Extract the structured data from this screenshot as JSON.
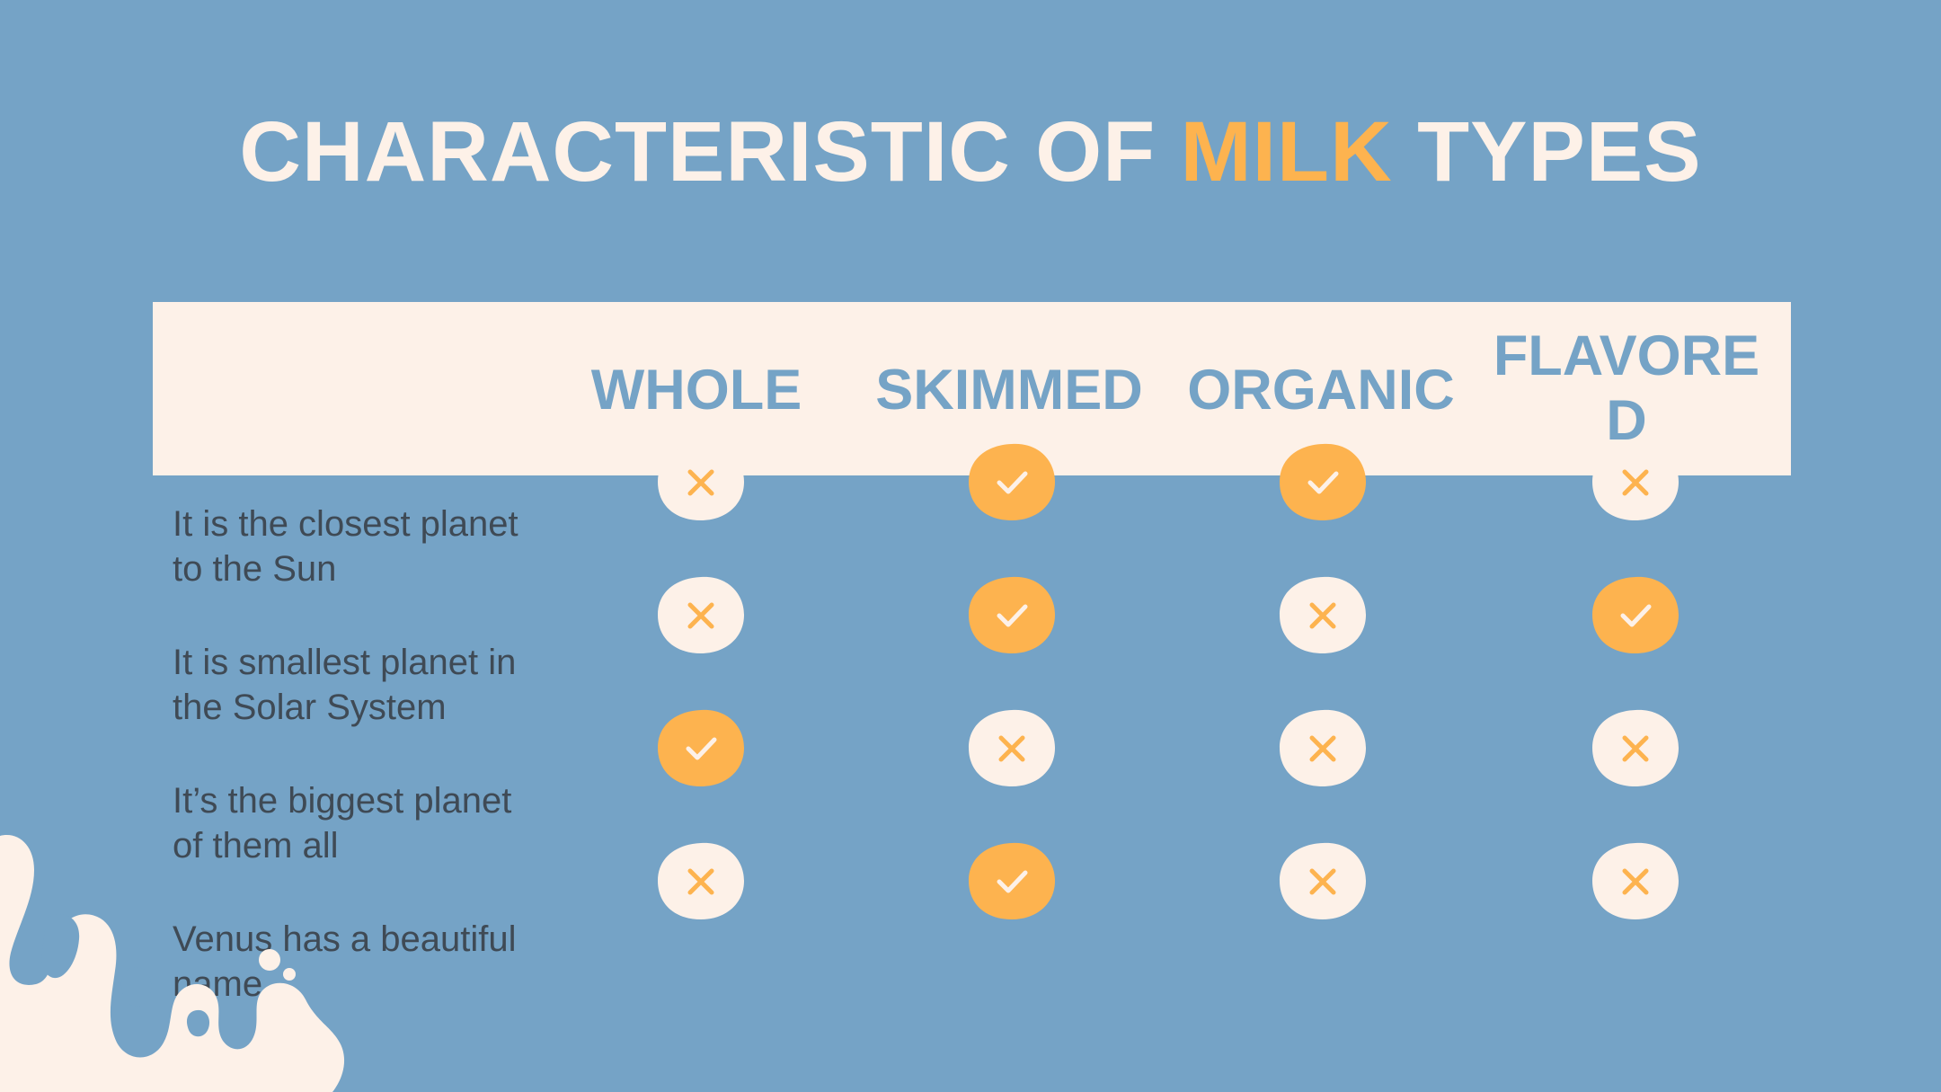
{
  "title": {
    "part1": "CHARACTERISTIC OF ",
    "accent": "MILK",
    "part2": " TYPES"
  },
  "columns": [
    "WHOLE",
    "SKIMMED",
    "ORGANIC",
    "FLAVORED"
  ],
  "rows": [
    {
      "label": "It is the closest planet to the Sun",
      "values": [
        "no",
        "yes",
        "yes",
        "no"
      ]
    },
    {
      "label": "It is smallest planet in the Solar System",
      "values": [
        "no",
        "yes",
        "no",
        "yes"
      ]
    },
    {
      "label": "It’s the biggest planet of them all",
      "values": [
        "yes",
        "no",
        "no",
        "no"
      ]
    },
    {
      "label": "Venus has a beautiful name",
      "values": [
        "no",
        "yes",
        "no",
        "no"
      ]
    }
  ],
  "colors": {
    "background": "#75a3c6",
    "cream": "#fdf1e8",
    "accent": "#fdb34f",
    "text": "#3f4a55"
  },
  "icons": {
    "yes": "check-icon",
    "no": "cross-icon"
  }
}
